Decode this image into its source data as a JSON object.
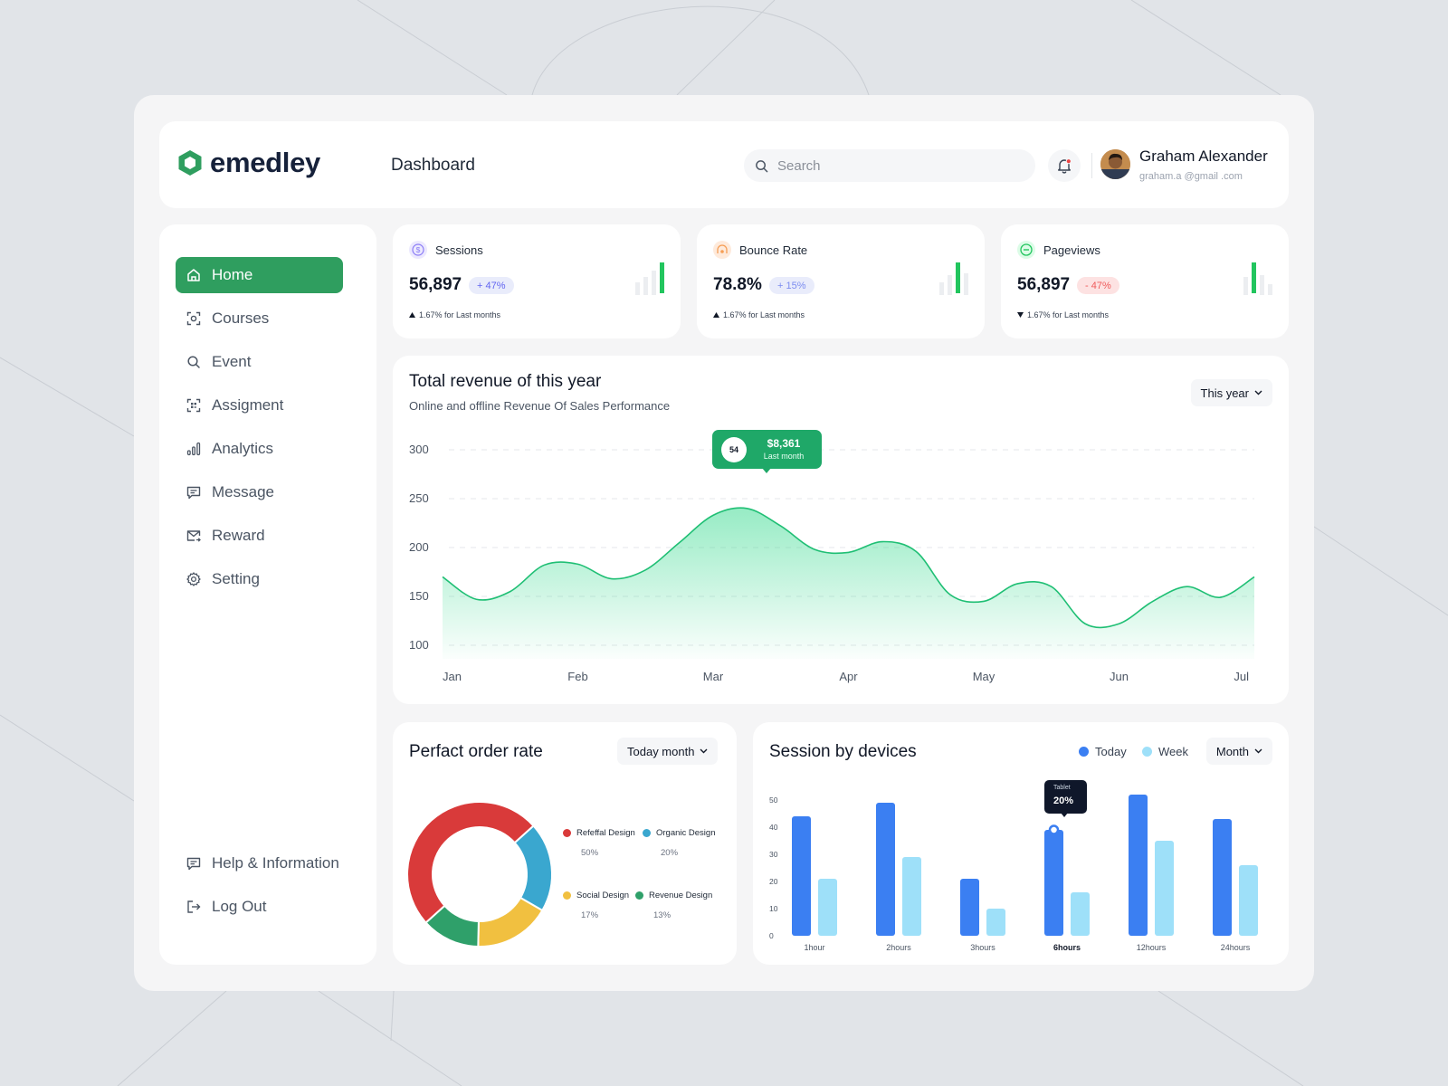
{
  "app": {
    "logo_text": "emedley",
    "page_title": "Dashboard"
  },
  "search": {
    "placeholder": "Search"
  },
  "user": {
    "name": "Graham Alexander",
    "email": "graham.a @gmail .com"
  },
  "sidebar": {
    "items": [
      {
        "label": "Home",
        "icon": "home-icon",
        "active": true
      },
      {
        "label": "Courses",
        "icon": "scan-icon"
      },
      {
        "label": "Event",
        "icon": "search-icon"
      },
      {
        "label": "Assigment",
        "icon": "qr-scan-icon"
      },
      {
        "label": "Analytics",
        "icon": "bar-chart-icon"
      },
      {
        "label": "Message",
        "icon": "message-icon"
      },
      {
        "label": "Reward",
        "icon": "mail-icon"
      },
      {
        "label": "Setting",
        "icon": "gear-icon"
      }
    ],
    "bottom": [
      {
        "label": "Help & Information",
        "icon": "help-message-icon"
      },
      {
        "label": "Log Out",
        "icon": "logout-icon"
      }
    ]
  },
  "stats": [
    {
      "label": "Sessions",
      "value": "56,897",
      "badge": "+ 47%",
      "trend": "up",
      "foot": "1.67% for Last months",
      "icon": "dollar-icon",
      "color": "#8b7cf6"
    },
    {
      "label": "Bounce Rate",
      "value": "78.8%",
      "badge": "+ 15%",
      "trend": "up",
      "foot": "1.67% for Last months",
      "icon": "bounce-icon",
      "color": "#f59e55"
    },
    {
      "label": "Pageviews",
      "value": "56,897",
      "badge": "- 47%",
      "trend": "down",
      "foot": "1.67% for Last months",
      "icon": "minus-circle-icon",
      "color": "#22c55e"
    }
  ],
  "revenue": {
    "title": "Total revenue of this year",
    "subtitle": "Online and offline Revenue Of Sales Performance",
    "period": "This year",
    "tooltip": {
      "badge": "54",
      "value": "$8,361",
      "caption": "Last month"
    }
  },
  "order_rate": {
    "title": "Perfact order rate",
    "period": "Today month"
  },
  "sessions_devices": {
    "title": "Session by devices",
    "legend": [
      {
        "label": "Today",
        "color": "#3b7ff2"
      },
      {
        "label": "Week",
        "color": "#9ee0f9"
      }
    ],
    "period": "Month",
    "tooltip": {
      "label": "Tablet",
      "value": "20%"
    }
  },
  "chart_data": [
    {
      "type": "area",
      "title": "Total revenue of this year",
      "categories": [
        "Jan",
        "Feb",
        "Mar",
        "Apr",
        "May",
        "Jun",
        "Jul"
      ],
      "yticks": [
        300,
        250,
        200,
        150,
        100
      ],
      "ylim": [
        100,
        300
      ],
      "x": [
        0,
        0.25,
        0.5,
        0.75,
        1,
        1.25,
        1.5,
        1.75,
        2,
        2.25,
        2.5,
        2.75,
        3,
        3.25,
        3.5,
        3.75,
        4,
        4.25,
        4.5,
        4.75,
        5,
        5.25,
        5.5,
        5.75,
        6
      ],
      "values": [
        170,
        147,
        155,
        182,
        183,
        168,
        177,
        205,
        233,
        240,
        222,
        198,
        195,
        206,
        196,
        152,
        145,
        163,
        160,
        122,
        122,
        145,
        160,
        149,
        170
      ],
      "color": "#1fbf74"
    },
    {
      "type": "pie",
      "labels": [
        "Refeffal Design",
        "Organic Design",
        "Social Design",
        "Revenue Design"
      ],
      "values": [
        50,
        20,
        17,
        13
      ],
      "display": [
        "50%",
        "20%",
        "17%",
        "13%"
      ],
      "colors": [
        "#d93a3a",
        "#3aa7cf",
        "#f1c040",
        "#2fa06a"
      ]
    },
    {
      "type": "bar",
      "categories": [
        "1hour",
        "2hours",
        "3hours",
        "6hours",
        "12hours",
        "24hours"
      ],
      "yticks": [
        50,
        40,
        30,
        20,
        10,
        0
      ],
      "ylim": [
        0,
        50
      ],
      "series": [
        {
          "name": "Today",
          "values": [
            44,
            49,
            21,
            39,
            52,
            43
          ],
          "color": "#3b7ff2"
        },
        {
          "name": "Week",
          "values": [
            21,
            29,
            10,
            16,
            35,
            26
          ],
          "color": "#9ee0f9"
        }
      ]
    }
  ]
}
